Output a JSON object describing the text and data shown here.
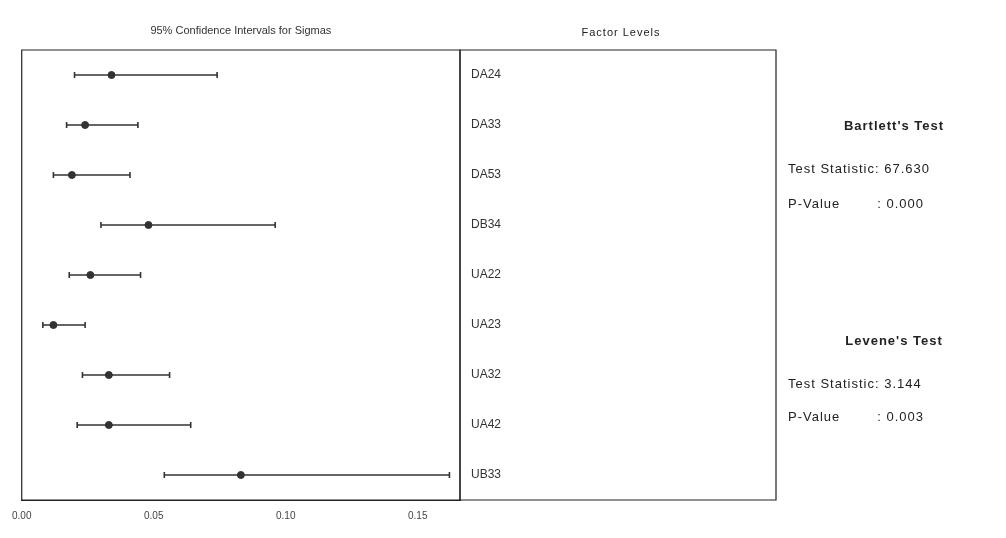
{
  "chart_data": {
    "type": "scatter",
    "title": "95% Confidence Intervals for Sigmas",
    "orientation": "horizontal",
    "marker": "circle",
    "categories": [
      "DA24",
      "DA33",
      "DA53",
      "DB34",
      "UA22",
      "UA23",
      "UA32",
      "UA42",
      "UB33"
    ],
    "series": [
      {
        "color": "#333333",
        "values": [
          0.034,
          0.024,
          0.019,
          0.048,
          0.026,
          0.012,
          0.033,
          0.033,
          0.083
        ],
        "errors": [
          [
            0.02,
            0.074
          ],
          [
            0.017,
            0.044
          ],
          [
            0.012,
            0.041
          ],
          [
            0.03,
            0.096
          ],
          [
            0.018,
            0.045
          ],
          [
            0.008,
            0.024
          ],
          [
            0.023,
            0.056
          ],
          [
            0.021,
            0.064
          ],
          [
            0.054,
            0.162
          ]
        ]
      }
    ],
    "xlim": [
      0,
      0.166
    ],
    "xticks": [
      {
        "value": 0,
        "label": "0.00"
      },
      {
        "value": 0.05,
        "label": "0.05"
      },
      {
        "value": 0.1,
        "label": "0.10"
      },
      {
        "value": 0.15,
        "label": "0.15"
      }
    ],
    "annotations": [
      "Factor Levels",
      "Bartlett's Test",
      "Test Statistic: 67.630",
      "P-Value        : 0.000",
      "Levene's Test",
      "Test Statistic: 3.144",
      "P-Value        : 0.003"
    ]
  }
}
